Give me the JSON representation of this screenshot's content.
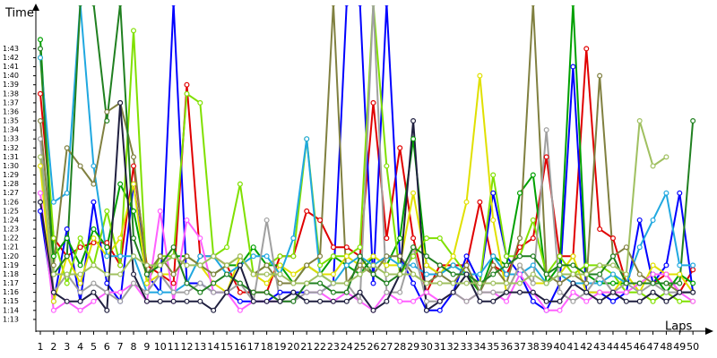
{
  "chart_data": {
    "type": "line",
    "y_label": "Time",
    "x_label": "Laps",
    "categories": [
      "1",
      "2",
      "3",
      "4",
      "5",
      "6",
      "7",
      "8",
      "9",
      "10",
      "11",
      "12",
      "13",
      "14",
      "15",
      "16",
      "17",
      "18",
      "19",
      "20",
      "21",
      "22",
      "23",
      "24",
      "25",
      "26",
      "27",
      "28",
      "29",
      "30",
      "31",
      "32",
      "33",
      "34",
      "35",
      "36",
      "37",
      "38",
      "39",
      "40",
      "41",
      "42",
      "43",
      "44",
      "45",
      "46",
      "47",
      "48",
      "49",
      "50"
    ],
    "ylim": [
      71.7,
      107.6
    ],
    "yticks": [
      {
        "value": 73,
        "label": "1:13"
      },
      {
        "value": 74,
        "label": "1:14"
      },
      {
        "value": 75,
        "label": "1:15"
      },
      {
        "value": 76,
        "label": "1:16"
      },
      {
        "value": 77,
        "label": "1:17"
      },
      {
        "value": 78,
        "label": "1:18"
      },
      {
        "value": 79,
        "label": "1:19"
      },
      {
        "value": 80,
        "label": "1:20"
      },
      {
        "value": 81,
        "label": "1:21"
      },
      {
        "value": 82,
        "label": "1:22"
      },
      {
        "value": 83,
        "label": "1:23"
      },
      {
        "value": 84,
        "label": "1:24"
      },
      {
        "value": 85,
        "label": "1:25"
      },
      {
        "value": 86,
        "label": "1:26"
      },
      {
        "value": 87,
        "label": "1:27"
      },
      {
        "value": 88,
        "label": "1:28"
      },
      {
        "value": 89,
        "label": "1:29"
      },
      {
        "value": 90,
        "label": "1:30"
      },
      {
        "value": 91,
        "label": "1:31"
      },
      {
        "value": 92,
        "label": "1:32"
      },
      {
        "value": 93,
        "label": "1:33"
      },
      {
        "value": 94,
        "label": "1:34"
      },
      {
        "value": 95,
        "label": "1:35"
      },
      {
        "value": 96,
        "label": "1:36"
      },
      {
        "value": 97,
        "label": "1:37"
      },
      {
        "value": 98,
        "label": "1:38"
      },
      {
        "value": 99,
        "label": "1:39"
      },
      {
        "value": 100,
        "label": "1:40"
      },
      {
        "value": 101,
        "label": "1:41"
      },
      {
        "value": 102,
        "label": "1:42"
      },
      {
        "value": 103,
        "label": "1:43"
      }
    ],
    "series": [
      {
        "color": "#e00000",
        "values": [
          98,
          82,
          80,
          81,
          81.5,
          81.5,
          79,
          90,
          79,
          78,
          77,
          99,
          80,
          80,
          79,
          76,
          76,
          76,
          80,
          80,
          85,
          84,
          81,
          81,
          80,
          97,
          82,
          92,
          82,
          76,
          79,
          79,
          79,
          86,
          79,
          78,
          81,
          82,
          91,
          80,
          80,
          103,
          83,
          82,
          77,
          77,
          77,
          78,
          76,
          78.5
        ]
      },
      {
        "color": "#0000ff",
        "values": [
          85,
          75,
          83,
          75,
          86,
          77,
          75,
          88,
          78,
          76,
          108,
          77,
          77,
          76,
          76,
          75,
          75,
          75,
          76,
          76,
          76,
          76,
          77,
          108,
          108,
          77,
          108,
          80,
          77,
          74,
          74,
          76,
          80,
          77,
          87,
          80,
          78,
          75,
          74,
          77,
          101,
          76,
          76,
          75,
          76,
          84,
          77,
          79,
          87,
          76
        ]
      },
      {
        "color": "#00a000",
        "values": [
          104,
          80,
          82,
          79,
          83,
          81,
          88,
          85,
          78,
          79,
          80,
          80,
          79,
          78,
          79,
          79,
          81,
          79,
          79,
          77,
          79,
          78,
          80,
          79,
          78,
          80,
          79,
          82,
          93,
          79,
          78,
          79,
          78,
          76,
          80,
          79,
          87,
          89,
          77,
          79,
          108,
          78,
          77,
          77,
          77,
          77,
          78,
          76,
          78,
          77
        ]
      },
      {
        "color": "#80e000",
        "values": [
          102,
          82,
          77,
          82,
          79,
          85,
          79,
          105,
          77,
          80,
          80,
          98,
          97,
          80,
          81,
          88,
          78,
          79,
          80,
          80,
          93,
          79,
          80,
          80,
          81,
          108,
          90,
          78,
          80,
          82,
          82,
          80,
          78,
          77,
          89,
          80,
          80,
          84,
          78,
          80,
          78,
          79,
          79,
          78,
          76,
          76,
          75,
          76,
          75,
          75
        ]
      },
      {
        "color": "#e0e000",
        "values": [
          90,
          75,
          80,
          77,
          82,
          80,
          82,
          88,
          77,
          78,
          78,
          80,
          79,
          77,
          76,
          80,
          78,
          77,
          79,
          78,
          79,
          78,
          78,
          80,
          79,
          80,
          79,
          79,
          87,
          79,
          78,
          80,
          86,
          100,
          84,
          76,
          79,
          77,
          77,
          78,
          80,
          76,
          76,
          76,
          78,
          76,
          79,
          78,
          78,
          76
        ]
      },
      {
        "color": "#20a8e0",
        "values": [
          102,
          86,
          87,
          108,
          90,
          80,
          80,
          80,
          76,
          76,
          76,
          77,
          80,
          80,
          78,
          79,
          80,
          80,
          78,
          82,
          93,
          78,
          77,
          79,
          80,
          79,
          80,
          79,
          79,
          78,
          78,
          79,
          78,
          78,
          80,
          78,
          78,
          79,
          77,
          78,
          77,
          77,
          77,
          78,
          77,
          81,
          84,
          87,
          79,
          79
        ]
      },
      {
        "color": "#ff60ff",
        "values": [
          87,
          74,
          75,
          74,
          75,
          76,
          76,
          77,
          75,
          85,
          75,
          84,
          82,
          76,
          76,
          74,
          75,
          75,
          75,
          75,
          76,
          76,
          75,
          76,
          75,
          74,
          76,
          75,
          75,
          76,
          75,
          76,
          75,
          76,
          76,
          75,
          78,
          76,
          74,
          74,
          76,
          75,
          76,
          76,
          76,
          77,
          78,
          78,
          76,
          75
        ]
      },
      {
        "color": "#808040",
        "values": [
          95,
          79,
          92,
          90,
          88,
          96,
          97,
          91,
          78,
          80,
          78,
          80,
          79,
          78,
          79,
          80,
          78,
          79,
          77,
          77,
          79,
          80,
          108,
          77,
          79,
          78,
          80,
          80,
          78,
          77,
          78,
          77,
          79,
          76,
          79,
          77,
          82,
          108,
          78,
          77,
          78,
          77,
          100,
          80,
          81,
          78,
          77,
          77,
          76,
          76
        ]
      },
      {
        "color": "#a0a0a0",
        "values": [
          93,
          76,
          78,
          76,
          77,
          76,
          75,
          77,
          76,
          78,
          76,
          76,
          77,
          76,
          76,
          77,
          75,
          84,
          75,
          75,
          76,
          76,
          77,
          77,
          75,
          108,
          76,
          76,
          81,
          75,
          75,
          76,
          75,
          76,
          76,
          76,
          79,
          77,
          94,
          76,
          75,
          76,
          78,
          76,
          77,
          76,
          77,
          76,
          76,
          76
        ]
      },
      {
        "color": "#208020",
        "values": [
          103,
          78,
          80,
          108,
          108,
          95,
          108,
          82,
          78,
          79,
          81,
          77,
          76,
          77,
          78,
          77,
          76,
          76,
          75,
          75,
          77,
          77,
          76,
          76,
          80,
          78,
          77,
          78,
          81,
          80,
          79,
          78,
          78,
          77,
          78,
          79,
          80,
          80,
          78,
          79,
          79,
          78,
          78,
          80,
          77,
          77,
          77,
          77,
          77,
          95
        ]
      },
      {
        "color": "#202040",
        "values": [
          86,
          76,
          75,
          75,
          76,
          74,
          97,
          78,
          75,
          75,
          75,
          75,
          75,
          74,
          76,
          79,
          75,
          75,
          75,
          76,
          75,
          75,
          75,
          75,
          76,
          74,
          75,
          78,
          95,
          74,
          75,
          76,
          78,
          75,
          75,
          76,
          76,
          76,
          75,
          75,
          77,
          76,
          75,
          76,
          75,
          75,
          76,
          75,
          76,
          76
        ]
      },
      {
        "color": "#a0c060",
        "values": [
          91,
          78,
          78,
          78,
          79,
          78,
          78,
          80,
          79,
          79,
          80,
          79,
          79,
          80,
          79,
          80,
          78,
          78,
          78,
          77,
          77,
          78,
          77,
          77,
          78,
          79,
          78,
          78,
          78,
          77,
          77,
          77,
          77,
          77,
          77,
          77,
          77,
          78,
          77,
          78,
          78,
          78,
          79,
          79,
          78,
          95,
          90,
          91,
          null,
          null
        ]
      }
    ]
  }
}
